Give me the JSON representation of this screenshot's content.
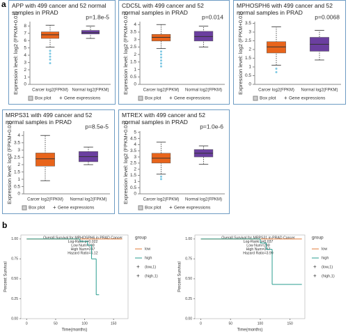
{
  "panel_labels": [
    "a",
    "b"
  ],
  "chart_data": [
    {
      "type": "box",
      "title": "APP with 499 cancer and 52 normal samples in PRAD",
      "annotation": "p=1.8e-5",
      "y_label": "Expression level: log2 (FPKM+0.01)",
      "categories": [
        "Carcer log2(FPKM)",
        "Normal log2(FPKM)"
      ],
      "legend": [
        "Box plot",
        "Gene expressions"
      ],
      "ylim": [
        0,
        8.6
      ],
      "yticks": [
        0,
        1,
        2,
        3,
        4,
        5,
        6,
        7,
        8
      ],
      "boxes": [
        {
          "color": "#e8641b",
          "min": 5.1,
          "q1": 6.3,
          "median": 6.8,
          "q3": 7.2,
          "max": 8.1,
          "outliers": [
            4.6,
            4.2,
            3.8,
            3.4,
            2.9
          ]
        },
        {
          "color": "#6b3fa0",
          "min": 6.3,
          "q1": 6.9,
          "median": 7.1,
          "q3": 7.4,
          "max": 8.0,
          "outliers": []
        }
      ]
    },
    {
      "type": "box",
      "title": "CDC5L with 499 cancer and 52 normal samples in PRAD",
      "annotation": "p=0.014",
      "y_label": "Expression level: log2 (FPKM+0.01)",
      "categories": [
        "Carcer log2(FPKM)",
        "Normal log2(FPKM)"
      ],
      "legend": [
        "Box plot",
        "Gene expressions"
      ],
      "ylim": [
        0,
        4.2
      ],
      "yticks": [
        0,
        0.5,
        1,
        1.5,
        2,
        2.5,
        3,
        3.5,
        4
      ],
      "boxes": [
        {
          "color": "#e8641b",
          "min": 2.4,
          "q1": 2.9,
          "median": 3.15,
          "q3": 3.35,
          "max": 4.0,
          "outliers": [
            2.2,
            2.0,
            1.8,
            1.6,
            1.4,
            1.2
          ]
        },
        {
          "color": "#6b3fa0",
          "min": 2.5,
          "q1": 2.9,
          "median": 3.2,
          "q3": 3.55,
          "max": 3.9,
          "outliers": []
        }
      ]
    },
    {
      "type": "box",
      "title": "MPHOSPH6 with 499 cancer and 52 normal samples in PRAD",
      "annotation": "p=0.0068",
      "y_label": "Expression level: log2 (FPKM+0.01)",
      "categories": [
        "Carcer log2(FPKM)",
        "Normal log2(FPKM)"
      ],
      "legend": [
        "Box plot",
        "Gene expressions"
      ],
      "ylim": [
        0,
        3.6
      ],
      "yticks": [
        0,
        0.5,
        1,
        1.5,
        2,
        2.5,
        3,
        3.5
      ],
      "boxes": [
        {
          "color": "#e8641b",
          "min": 1.1,
          "q1": 1.8,
          "median": 2.15,
          "q3": 2.45,
          "max": 3.3,
          "outliers": [
            0.9,
            0.7
          ]
        },
        {
          "color": "#6b3fa0",
          "min": 1.4,
          "q1": 1.9,
          "median": 2.3,
          "q3": 2.7,
          "max": 3.1,
          "outliers": []
        }
      ]
    },
    {
      "type": "box",
      "title": "MRPS31 with 499 cancer and 52 normal samples in PRAD",
      "annotation": "p=8.5e-5",
      "y_label": "Expression level: log2 (FPKM+0.01)",
      "categories": [
        "Carcer log2(FPKM)",
        "Normal log2(FPKM)"
      ],
      "legend": [
        "Box plot",
        "Gene expressions"
      ],
      "ylim": [
        0,
        4.3
      ],
      "yticks": [
        0,
        0.5,
        1,
        1.5,
        2,
        2.5,
        3,
        3.5,
        4
      ],
      "boxes": [
        {
          "color": "#e8641b",
          "min": 0.9,
          "q1": 1.9,
          "median": 2.4,
          "q3": 2.8,
          "max": 4.0,
          "outliers": []
        },
        {
          "color": "#6b3fa0",
          "min": 2.0,
          "q1": 2.2,
          "median": 2.55,
          "q3": 2.9,
          "max": 3.2,
          "outliers": []
        }
      ]
    },
    {
      "type": "box",
      "title": "MTREX with 499 cancer and 52 normal samples in PRAD",
      "annotation": "p=1.0e-6",
      "y_label": "Expression level: log2 (FPKM+0.01)",
      "categories": [
        "Carcer log2(FPKM)",
        "Normal log2(FPKM)"
      ],
      "legend": [
        "Box plot",
        "Gene expressions"
      ],
      "ylim": [
        0,
        5.1
      ],
      "yticks": [
        0,
        0.5,
        1,
        1.5,
        2,
        2.5,
        3,
        3.5,
        4,
        4.5,
        5
      ],
      "boxes": [
        {
          "color": "#e8641b",
          "min": 1.6,
          "q1": 2.5,
          "median": 2.9,
          "q3": 3.3,
          "max": 4.2,
          "outliers": [
            1.4,
            1.2
          ]
        },
        {
          "color": "#6b3fa0",
          "min": 2.4,
          "q1": 3.0,
          "median": 3.3,
          "q3": 3.6,
          "max": 3.9,
          "outliers": []
        }
      ]
    },
    {
      "type": "survival",
      "annotations": [
        "Overall Survival for MPHOSPH6 in PRAD Cancer",
        "Log-Rank p=0.022",
        "Low Num=248",
        "High Num=247",
        "Hazard Ratio=5.12"
      ],
      "x_label": "Time(months)",
      "y_label": "Percent Survival",
      "legend_title": "group",
      "legend": [
        "low",
        "high",
        "(low,1)",
        "(high,1)"
      ],
      "xlim": [
        -10,
        175
      ],
      "xticks": [
        0,
        50,
        100,
        150
      ],
      "ylim": [
        0,
        1.05
      ],
      "yticks": [
        {
          "value": 0,
          "label": "0.00"
        },
        {
          "value": 0.25,
          "label": "0.25"
        },
        {
          "value": 0.5,
          "label": "0.50"
        },
        {
          "value": 0.75,
          "label": "0.75"
        },
        {
          "value": 1,
          "label": "1.00"
        }
      ],
      "series": [
        {
          "name": "low",
          "color": "#e07b39",
          "x": [
            0,
            165
          ],
          "values": [
            1,
            1
          ]
        },
        {
          "name": "high",
          "color": "#2a9d8f",
          "x": [
            0,
            92,
            105,
            112,
            120,
            125
          ],
          "values": [
            1,
            0.97,
            0.92,
            0.75,
            0.3,
            0.3
          ]
        }
      ]
    },
    {
      "type": "survival",
      "annotations": [
        "Overall Survival for MRPS31 in PRAD Cancer",
        "Log-Rank p=0.037",
        "Low Num=248",
        "High Num=247",
        "Hazard Ratio=3.99"
      ],
      "x_label": "Time(months)",
      "y_label": "Percent Survival",
      "legend_title": "group",
      "legend": [
        "low",
        "high",
        "(low,1)",
        "(high,1)"
      ],
      "xlim": [
        -10,
        175
      ],
      "xticks": [
        0,
        50,
        100,
        150
      ],
      "ylim": [
        0,
        1.05
      ],
      "yticks": [
        {
          "value": 0,
          "label": "0.00"
        },
        {
          "value": 0.25,
          "label": "0.25"
        },
        {
          "value": 0.5,
          "label": "0.50"
        },
        {
          "value": 0.75,
          "label": "0.75"
        },
        {
          "value": 1,
          "label": "1.00"
        }
      ],
      "series": [
        {
          "name": "low",
          "color": "#e07b39",
          "x": [
            0,
            170
          ],
          "values": [
            1,
            1
          ]
        },
        {
          "name": "high",
          "color": "#2a9d8f",
          "x": [
            0,
            100,
            110,
            120,
            170
          ],
          "values": [
            1,
            0.95,
            0.87,
            0.43,
            0.43
          ]
        }
      ]
    }
  ]
}
